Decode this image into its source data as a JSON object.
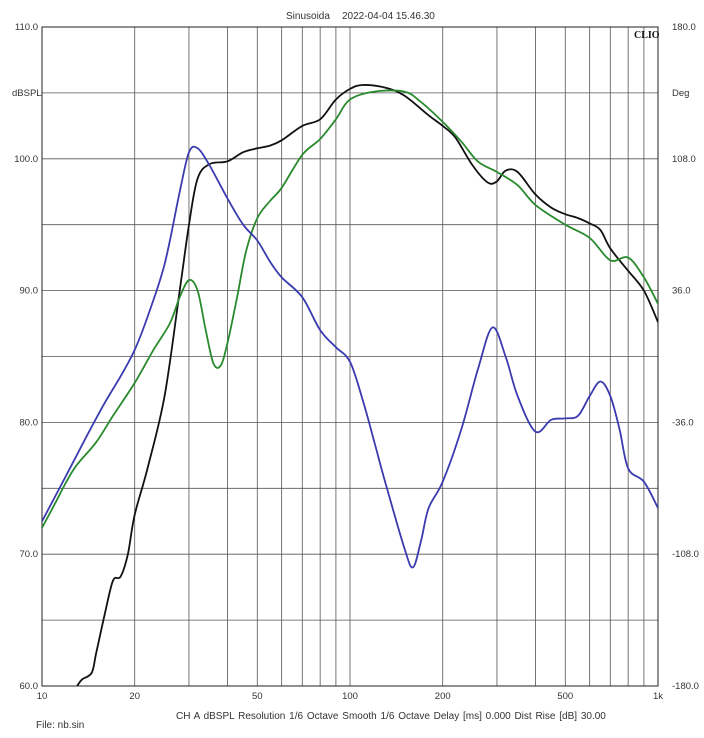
{
  "header": {
    "title": "Sinusoida",
    "timestamp": "2022-04-04 15.46.30",
    "logo": "CLIO"
  },
  "footer": {
    "info": "CH A   dBSPL   Resolution 1/6 Octave   Smooth 1/6 Octave   Delay [ms] 0.000   Dist Rise [dB] 30.00",
    "file": "File: nb.sin"
  },
  "chart_data": {
    "type": "line",
    "xscale": "log",
    "xlim": [
      10,
      1000
    ],
    "ylim": [
      60,
      110
    ],
    "ylim_right": [
      -180,
      180
    ],
    "grid": true,
    "ylabel": "dBSPL",
    "ylabel_right": "Deg",
    "x_tick_labels": [
      {
        "value": 10,
        "label": "10"
      },
      {
        "value": 20,
        "label": "20"
      },
      {
        "value": 50,
        "label": "50"
      },
      {
        "value": 100,
        "label": "100"
      },
      {
        "value": 200,
        "label": "200"
      },
      {
        "value": 500,
        "label": "500"
      },
      {
        "value": 1000,
        "label": "1k"
      }
    ],
    "y_tick_labels": [
      {
        "value": 110,
        "label": "110.0"
      },
      {
        "value": 100,
        "label": "100.0"
      },
      {
        "value": 90,
        "label": "90.0"
      },
      {
        "value": 80,
        "label": "80.0"
      },
      {
        "value": 70,
        "label": "70.0"
      },
      {
        "value": 60,
        "label": "60.0"
      }
    ],
    "y_right_tick_labels": [
      {
        "value": 180,
        "label": "180.0"
      },
      {
        "value": 108,
        "label": "108.0"
      },
      {
        "value": 36,
        "label": "36.0"
      },
      {
        "value": -36,
        "label": "-36.0"
      },
      {
        "value": -108,
        "label": "-108.0"
      },
      {
        "value": -180,
        "label": "-180.0"
      }
    ],
    "series": [
      {
        "color": "#111111",
        "points": [
          [
            13,
            60
          ],
          [
            13.5,
            60.5
          ],
          [
            14.5,
            61
          ],
          [
            15,
            62.5
          ],
          [
            16,
            65.5
          ],
          [
            17,
            68
          ],
          [
            18,
            68.3
          ],
          [
            19,
            70
          ],
          [
            20,
            73
          ],
          [
            22,
            76.5
          ],
          [
            25,
            82
          ],
          [
            28,
            90
          ],
          [
            30,
            95
          ],
          [
            32,
            98.5
          ],
          [
            35,
            99.6
          ],
          [
            40,
            99.8
          ],
          [
            45,
            100.5
          ],
          [
            50,
            100.8
          ],
          [
            55,
            101
          ],
          [
            60,
            101.4
          ],
          [
            70,
            102.5
          ],
          [
            80,
            103
          ],
          [
            90,
            104.5
          ],
          [
            100,
            105.3
          ],
          [
            110,
            105.6
          ],
          [
            130,
            105.4
          ],
          [
            150,
            104.8
          ],
          [
            180,
            103.3
          ],
          [
            200,
            102.5
          ],
          [
            220,
            101.6
          ],
          [
            250,
            99.5
          ],
          [
            280,
            98.2
          ],
          [
            300,
            98.3
          ],
          [
            320,
            99.1
          ],
          [
            350,
            99
          ],
          [
            400,
            97.3
          ],
          [
            450,
            96.3
          ],
          [
            500,
            95.8
          ],
          [
            550,
            95.5
          ],
          [
            600,
            95.1
          ],
          [
            650,
            94.6
          ],
          [
            700,
            93.2
          ],
          [
            800,
            91.5
          ],
          [
            900,
            90
          ],
          [
            1000,
            87.6
          ]
        ]
      },
      {
        "color": "#2a8a2e",
        "points": [
          [
            10,
            72
          ],
          [
            11,
            73.8
          ],
          [
            12,
            75.5
          ],
          [
            13,
            76.8
          ],
          [
            15,
            78.5
          ],
          [
            17,
            80.5
          ],
          [
            20,
            83
          ],
          [
            23,
            85.5
          ],
          [
            26,
            87.5
          ],
          [
            28,
            89.5
          ],
          [
            30,
            90.8
          ],
          [
            32,
            90
          ],
          [
            34,
            87
          ],
          [
            36,
            84.5
          ],
          [
            38,
            84.3
          ],
          [
            40,
            86
          ],
          [
            43,
            89.5
          ],
          [
            46,
            93
          ],
          [
            50,
            95.5
          ],
          [
            55,
            96.8
          ],
          [
            60,
            97.8
          ],
          [
            70,
            100.3
          ],
          [
            80,
            101.5
          ],
          [
            90,
            103
          ],
          [
            100,
            104.5
          ],
          [
            120,
            105.1
          ],
          [
            150,
            105.1
          ],
          [
            170,
            104.3
          ],
          [
            200,
            102.8
          ],
          [
            230,
            101.3
          ],
          [
            260,
            99.8
          ],
          [
            300,
            99
          ],
          [
            350,
            98
          ],
          [
            400,
            96.5
          ],
          [
            500,
            95
          ],
          [
            600,
            94
          ],
          [
            700,
            92.3
          ],
          [
            800,
            92.5
          ],
          [
            900,
            91
          ],
          [
            1000,
            89
          ]
        ]
      },
      {
        "color": "#3b3bb0",
        "points": [
          [
            10,
            72.5
          ],
          [
            12,
            76
          ],
          [
            14,
            79
          ],
          [
            16,
            81.5
          ],
          [
            18,
            83.5
          ],
          [
            20,
            85.5
          ],
          [
            22,
            88
          ],
          [
            25,
            92
          ],
          [
            28,
            97.5
          ],
          [
            30,
            100.5
          ],
          [
            32,
            100.8
          ],
          [
            35,
            99.5
          ],
          [
            40,
            97
          ],
          [
            45,
            95
          ],
          [
            50,
            93.8
          ],
          [
            55,
            92.2
          ],
          [
            60,
            91
          ],
          [
            70,
            89.5
          ],
          [
            80,
            87
          ],
          [
            90,
            85.7
          ],
          [
            100,
            84.6
          ],
          [
            110,
            81.7
          ],
          [
            120,
            78.5
          ],
          [
            130,
            75.5
          ],
          [
            150,
            70.5
          ],
          [
            160,
            69
          ],
          [
            170,
            71
          ],
          [
            180,
            73.5
          ],
          [
            200,
            75.5
          ],
          [
            230,
            79.5
          ],
          [
            260,
            84
          ],
          [
            290,
            87.2
          ],
          [
            320,
            85
          ],
          [
            350,
            82
          ],
          [
            400,
            79.3
          ],
          [
            450,
            80.2
          ],
          [
            500,
            80.3
          ],
          [
            550,
            80.5
          ],
          [
            600,
            82
          ],
          [
            650,
            83.1
          ],
          [
            700,
            82
          ],
          [
            750,
            79.5
          ],
          [
            800,
            76.5
          ],
          [
            900,
            75.5
          ],
          [
            1000,
            73.5
          ]
        ]
      }
    ]
  }
}
